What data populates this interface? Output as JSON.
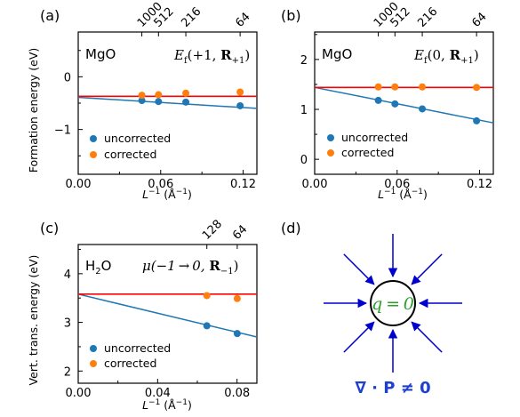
{
  "figure": {
    "colors": {
      "uncorrected": "#1f77b4",
      "corrected": "#ff7f0e",
      "reference": "#ff0000",
      "arrow": "#0000cc",
      "charge": "#2ca02c",
      "divergence": "#1f3fd0"
    },
    "panel_d": {
      "label": "(d)",
      "charge_text": "q = 0",
      "divergence_text": "∇ · P ≠ 0"
    }
  },
  "chart_data": [
    {
      "type": "scatter",
      "panel": "(a)",
      "molecule": "MgO",
      "note": "Ef(+1, R₊₁)",
      "note_main": "E",
      "note_sub": "f",
      "note_rest": "(+1, ",
      "note_bold": "R",
      "note_bsub": "+1",
      "note_end": ")",
      "xlabel": "L⁻¹ (Å⁻¹)",
      "xlabel_main": "L",
      "xlabel_sup": "−1",
      "xlabel_rest": " (Å",
      "xlabel_sup2": "−1",
      "xlabel_end": ")",
      "ylabel": "Formation energy (eV)",
      "xlim": [
        0.0,
        0.13
      ],
      "ylim": [
        -1.85,
        0.85
      ],
      "xticks": [
        0.0,
        0.06,
        0.12
      ],
      "xtick_labels": [
        "0.00",
        "0.06",
        "0.12"
      ],
      "yticks": [
        -1,
        0
      ],
      "ytick_labels": [
        "−1",
        "0"
      ],
      "top_ticks": {
        "x": [
          0.0463,
          0.0584,
          0.0783,
          0.1178
        ],
        "labels": [
          "1000",
          "512",
          "216",
          "64"
        ]
      },
      "series": [
        {
          "name": "uncorrected",
          "x": [
            0.0463,
            0.0584,
            0.0783,
            0.1178
          ],
          "y": [
            -0.45,
            -0.47,
            -0.48,
            -0.55
          ]
        },
        {
          "name": "corrected",
          "x": [
            0.0463,
            0.0584,
            0.0783,
            0.1178
          ],
          "y": [
            -0.35,
            -0.34,
            -0.31,
            -0.29
          ]
        }
      ],
      "fit_line": {
        "x": [
          0.0,
          0.13
        ],
        "y": [
          -0.39,
          -0.6
        ]
      },
      "reference_line": {
        "y": -0.37
      },
      "legend": [
        "uncorrected",
        "corrected"
      ],
      "legend_loc": "lower-left"
    },
    {
      "type": "scatter",
      "panel": "(b)",
      "molecule": "MgO",
      "note_main": "E",
      "note_sub": "f",
      "note_rest": "(0, ",
      "note_bold": "R",
      "note_bsub": "+1",
      "note_end": ")",
      "xlabel_main": "L",
      "xlabel_sup": "−1",
      "xlabel_rest": " (Å",
      "xlabel_sup2": "−1",
      "xlabel_end": ")",
      "ylabel": "",
      "xlim": [
        0.0,
        0.13
      ],
      "ylim": [
        -0.3,
        2.55
      ],
      "xticks": [
        0.0,
        0.06,
        0.12
      ],
      "xtick_labels": [
        "0.00",
        "0.06",
        "0.12"
      ],
      "yticks": [
        0,
        1,
        2
      ],
      "ytick_labels": [
        "0",
        "1",
        "2"
      ],
      "top_ticks": {
        "x": [
          0.0463,
          0.0584,
          0.0783,
          0.1178
        ],
        "labels": [
          "1000",
          "512",
          "216",
          "64"
        ]
      },
      "series": [
        {
          "name": "uncorrected",
          "x": [
            0.0463,
            0.0584,
            0.0783,
            0.1178
          ],
          "y": [
            1.18,
            1.11,
            1.01,
            0.77
          ]
        },
        {
          "name": "corrected",
          "x": [
            0.0463,
            0.0584,
            0.0783,
            0.1178
          ],
          "y": [
            1.45,
            1.45,
            1.45,
            1.44
          ]
        }
      ],
      "fit_line": {
        "x": [
          0.0,
          0.13
        ],
        "y": [
          1.44,
          0.73
        ]
      },
      "reference_line": {
        "y": 1.44
      },
      "legend": [
        "uncorrected",
        "corrected"
      ],
      "legend_loc": "lower-left"
    },
    {
      "type": "scatter",
      "panel": "(c)",
      "molecule": "H₂O",
      "molecule_main": "H",
      "molecule_sub": "2",
      "molecule_end": "O",
      "note_mu": "μ(−1 → 0, ",
      "note_bold": "R",
      "note_bsub": "−1",
      "note_end": ")",
      "xlabel_main": "L",
      "xlabel_sup": "−1",
      "xlabel_rest": " (Å",
      "xlabel_sup2": "−1",
      "xlabel_end": ")",
      "ylabel": "Vert. trans. energy (eV)",
      "xlim": [
        0.0,
        0.09
      ],
      "ylim": [
        1.75,
        4.6
      ],
      "xticks": [
        0.0,
        0.04,
        0.08
      ],
      "xtick_labels": [
        "0.00",
        "0.04",
        "0.08"
      ],
      "yticks": [
        2,
        3,
        4
      ],
      "ytick_labels": [
        "2",
        "3",
        "4"
      ],
      "top_ticks": {
        "x": [
          0.0648,
          0.0801
        ],
        "labels": [
          "128",
          "64"
        ]
      },
      "series": [
        {
          "name": "uncorrected",
          "x": [
            0.0648,
            0.0801
          ],
          "y": [
            2.93,
            2.77
          ]
        },
        {
          "name": "corrected",
          "x": [
            0.0648,
            0.0801
          ],
          "y": [
            3.55,
            3.49
          ]
        }
      ],
      "fit_line": {
        "x": [
          0.0,
          0.09
        ],
        "y": [
          3.58,
          2.7
        ]
      },
      "reference_line": {
        "y": 3.58
      },
      "legend": [
        "uncorrected",
        "corrected"
      ],
      "legend_loc": "lower-left"
    }
  ]
}
